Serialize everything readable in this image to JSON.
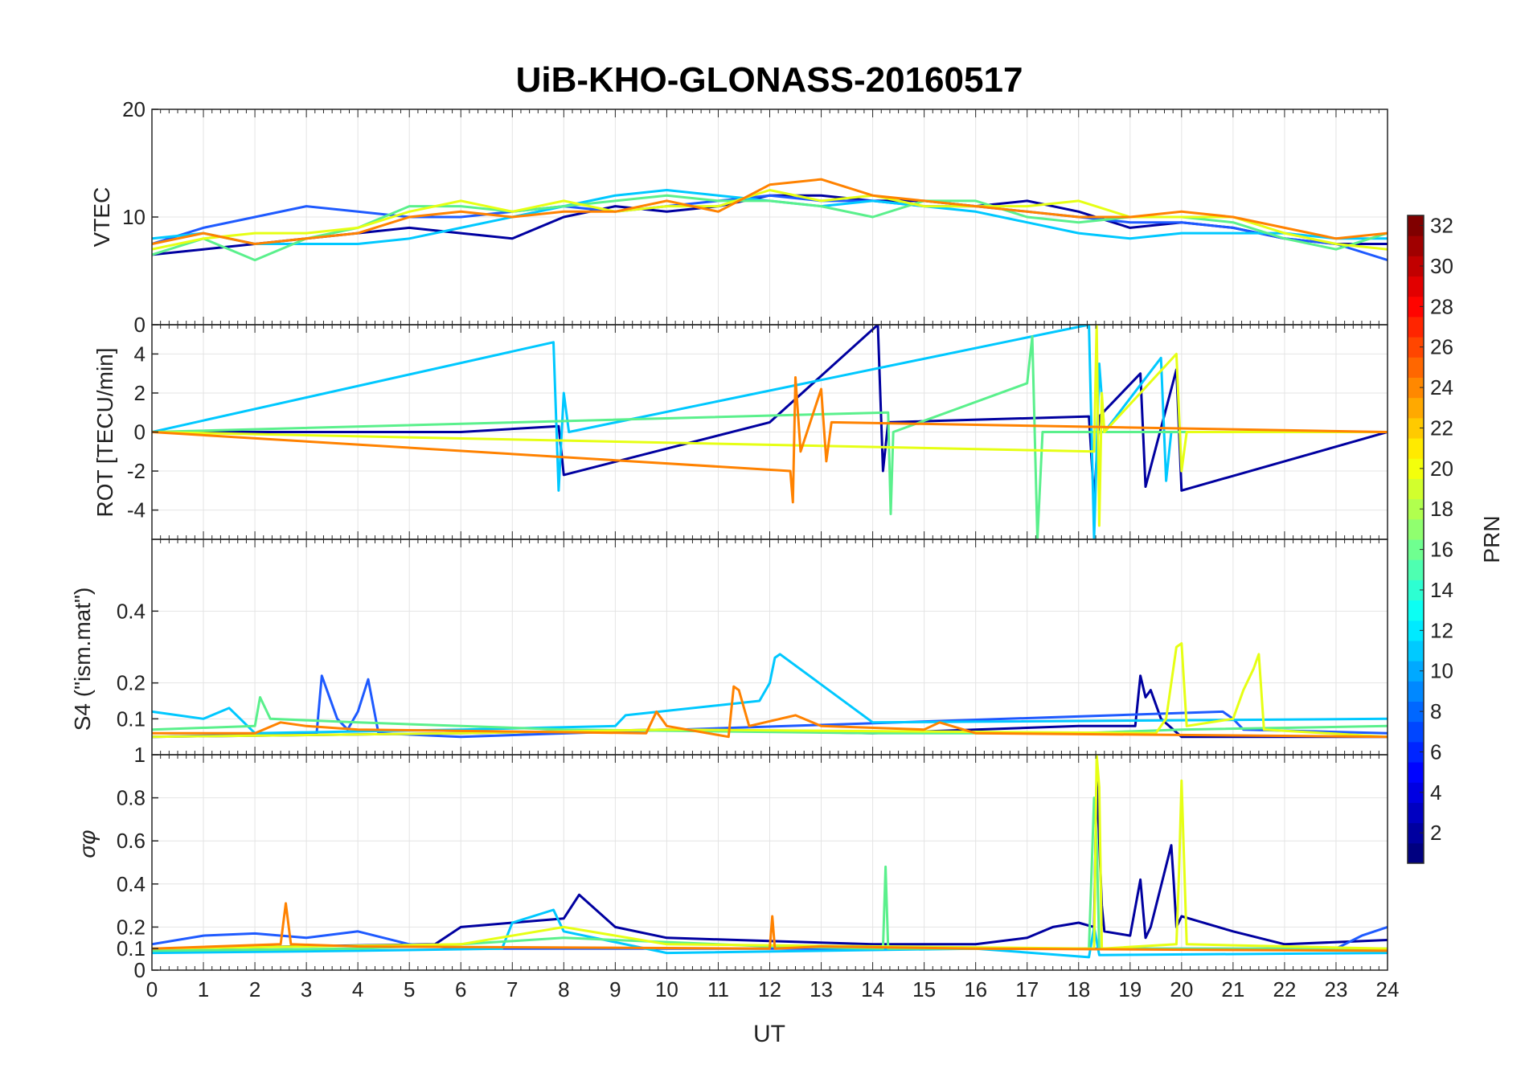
{
  "chart_data": {
    "type": "line",
    "title": "UiB-KHO-GLONASS-20160517",
    "xlabel": "UT",
    "xlim": [
      0,
      24
    ],
    "x_ticks": [
      "0",
      "1",
      "2",
      "3",
      "4",
      "5",
      "6",
      "7",
      "8",
      "9",
      "10",
      "11",
      "12",
      "13",
      "14",
      "15",
      "16",
      "17",
      "18",
      "19",
      "20",
      "21",
      "22",
      "23",
      "24"
    ],
    "grid": true,
    "colorbar": {
      "label": "PRN",
      "colormap": "jet",
      "range": [
        1,
        32
      ],
      "ticks": [
        "2",
        "4",
        "6",
        "8",
        "10",
        "12",
        "14",
        "16",
        "18",
        "20",
        "22",
        "24",
        "26",
        "28",
        "30",
        "32"
      ],
      "placement": "right"
    },
    "panels": [
      {
        "ylabel": "VTEC",
        "ylim": [
          0,
          20
        ],
        "y_ticks": [
          "0",
          "10",
          "20"
        ],
        "y_tick_values": [
          0,
          10,
          20
        ],
        "series": [
          {
            "color": "#0000a0",
            "x": [
              0,
              1,
              2,
              3,
              4,
              5,
              6,
              7,
              8,
              9,
              10,
              11,
              12,
              13,
              14,
              15,
              16,
              17,
              18,
              19,
              20,
              21,
              22,
              23,
              24
            ],
            "values": [
              6.5,
              7.0,
              7.5,
              8.0,
              8.5,
              9.0,
              8.5,
              8.0,
              10.0,
              11.0,
              10.5,
              11.0,
              12.0,
              12.0,
              11.5,
              11.5,
              11.0,
              11.5,
              10.5,
              9.0,
              9.5,
              9.0,
              8.0,
              7.5,
              7.5
            ]
          },
          {
            "color": "#1e5aff",
            "x": [
              0,
              1,
              2,
              3,
              4,
              5,
              6,
              7,
              8,
              9,
              10,
              11,
              12,
              13,
              14,
              15,
              16,
              17,
              18,
              19,
              20,
              21,
              22,
              23,
              24
            ],
            "values": [
              7.5,
              9.0,
              10.0,
              11.0,
              10.5,
              10.0,
              10.0,
              10.5,
              11.0,
              10.5,
              11.0,
              11.5,
              12.0,
              11.5,
              11.5,
              11.0,
              11.0,
              10.5,
              10.0,
              9.5,
              9.5,
              9.0,
              8.0,
              7.5,
              6.0
            ]
          },
          {
            "color": "#00c8ff",
            "x": [
              0,
              1,
              2,
              3,
              4,
              5,
              6,
              7,
              8,
              9,
              10,
              11,
              12,
              13,
              14,
              15,
              16,
              17,
              18,
              19,
              20,
              21,
              22,
              23,
              24
            ],
            "values": [
              8.0,
              8.5,
              7.5,
              7.5,
              7.5,
              8.0,
              9.0,
              10.0,
              11.0,
              12.0,
              12.5,
              12.0,
              11.5,
              11.0,
              11.5,
              11.0,
              10.5,
              9.5,
              8.5,
              8.0,
              8.5,
              8.5,
              8.5,
              8.0,
              8.0
            ]
          },
          {
            "color": "#5af08c",
            "x": [
              0,
              1,
              2,
              3,
              4,
              5,
              6,
              7,
              8,
              9,
              10,
              11,
              12,
              13,
              14,
              15,
              16,
              17,
              18,
              19,
              20,
              21,
              22,
              23,
              24
            ],
            "values": [
              6.5,
              8.0,
              6.0,
              8.0,
              9.0,
              11.0,
              11.0,
              10.5,
              11.0,
              11.5,
              12.0,
              11.5,
              11.5,
              11.0,
              10.0,
              11.5,
              11.5,
              10.0,
              9.5,
              10.0,
              10.0,
              9.5,
              8.0,
              7.0,
              8.5
            ]
          },
          {
            "color": "#e6ff14",
            "x": [
              0,
              1,
              2,
              3,
              4,
              5,
              6,
              7,
              8,
              9,
              10,
              11,
              12,
              13,
              14,
              15,
              16,
              17,
              18,
              19,
              20,
              21,
              22,
              23,
              24
            ],
            "values": [
              7.0,
              8.0,
              8.5,
              8.5,
              9.0,
              10.5,
              11.5,
              10.5,
              11.5,
              10.5,
              11.0,
              11.0,
              12.5,
              11.5,
              12.0,
              11.0,
              11.0,
              11.0,
              11.5,
              10.0,
              10.0,
              10.0,
              8.5,
              7.5,
              7.0
            ]
          },
          {
            "color": "#ff8200",
            "x": [
              0,
              1,
              2,
              3,
              4,
              5,
              6,
              7,
              8,
              9,
              10,
              11,
              12,
              13,
              14,
              15,
              16,
              17,
              18,
              19,
              20,
              21,
              22,
              23,
              24
            ],
            "values": [
              7.5,
              8.5,
              7.5,
              8.0,
              8.5,
              10.0,
              10.5,
              10.0,
              10.5,
              10.5,
              11.5,
              10.5,
              13.0,
              13.5,
              12.0,
              11.5,
              11.0,
              10.5,
              10.0,
              10.0,
              10.5,
              10.0,
              9.0,
              8.0,
              8.5
            ]
          }
        ]
      },
      {
        "ylabel": "ROT [TECU/min]",
        "ylim": [
          -5.5,
          5.5
        ],
        "y_ticks": [
          "-4",
          "-2",
          "0",
          "2",
          "4"
        ],
        "y_tick_values": [
          -4,
          -2,
          0,
          2,
          4
        ],
        "series": [
          {
            "color": "#0000a0",
            "x": [
              0,
              6,
              7.9,
              8.0,
              12.0,
              14.1,
              14.2,
              14.3,
              18.2,
              18.3,
              18.4,
              19.2,
              19.3,
              19.9,
              20.0,
              24
            ],
            "values": [
              0,
              0,
              0.3,
              -2.2,
              0.5,
              5.5,
              -2.0,
              0.5,
              0.8,
              -3.5,
              0.8,
              3.0,
              -2.8,
              3.2,
              -3.0,
              0
            ]
          },
          {
            "color": "#00c8ff",
            "x": [
              0,
              7.8,
              7.9,
              8.0,
              8.1,
              18.2,
              18.3,
              18.4,
              18.5,
              19.6,
              19.7,
              19.8,
              24
            ],
            "values": [
              0,
              4.6,
              -3.0,
              2.0,
              0,
              5.5,
              -5.5,
              3.5,
              0,
              3.8,
              -2.5,
              0,
              0
            ]
          },
          {
            "color": "#5af08c",
            "x": [
              0,
              14.3,
              14.35,
              14.4,
              17.0,
              17.1,
              17.2,
              17.3,
              24
            ],
            "values": [
              0,
              1.0,
              -4.2,
              0,
              2.5,
              4.9,
              -5.5,
              0,
              0
            ]
          },
          {
            "color": "#e6ff14",
            "x": [
              0,
              18.3,
              18.35,
              18.4,
              18.45,
              18.5,
              19.9,
              20.0,
              20.1,
              24
            ],
            "values": [
              0,
              -1.0,
              5.5,
              -4.8,
              2.0,
              0,
              4.0,
              -2.0,
              0,
              0
            ]
          },
          {
            "color": "#ff8200",
            "x": [
              0,
              12.4,
              12.45,
              12.5,
              12.6,
              13.0,
              13.1,
              13.2,
              24
            ],
            "values": [
              0,
              -2.0,
              -3.6,
              2.8,
              -1.0,
              2.2,
              -1.5,
              0.5,
              0
            ]
          }
        ]
      },
      {
        "ylabel": "S4 (\"ism.mat\")",
        "ylim": [
          0,
          0.6
        ],
        "y_ticks": [
          "0.1",
          "0.2",
          "0.4"
        ],
        "y_tick_values": [
          0.1,
          0.2,
          0.4
        ],
        "series": [
          {
            "color": "#0000a0",
            "x": [
              0,
              6,
              10,
              14,
              18,
              19.1,
              19.2,
              19.3,
              19.4,
              19.6,
              20,
              24
            ],
            "values": [
              0.05,
              0.06,
              0.07,
              0.06,
              0.08,
              0.08,
              0.22,
              0.16,
              0.18,
              0.1,
              0.05,
              0.05
            ]
          },
          {
            "color": "#1e5aff",
            "x": [
              0,
              3.2,
              3.3,
              3.4,
              3.6,
              3.8,
              4.0,
              4.2,
              4.4,
              6,
              20.8,
              21.0,
              21.2,
              24
            ],
            "values": [
              0.05,
              0.06,
              0.22,
              0.18,
              0.1,
              0.07,
              0.12,
              0.21,
              0.06,
              0.05,
              0.12,
              0.1,
              0.07,
              0.06
            ]
          },
          {
            "color": "#00c8ff",
            "x": [
              0,
              1.0,
              1.5,
              2,
              6,
              9.0,
              9.2,
              11.8,
              12.0,
              12.1,
              12.2,
              14,
              24
            ],
            "values": [
              0.12,
              0.1,
              0.13,
              0.06,
              0.07,
              0.08,
              0.11,
              0.15,
              0.2,
              0.27,
              0.28,
              0.09,
              0.1
            ]
          },
          {
            "color": "#5af08c",
            "x": [
              0,
              2.0,
              2.1,
              2.3,
              4,
              8,
              14,
              18,
              20,
              24
            ],
            "values": [
              0.07,
              0.08,
              0.16,
              0.1,
              0.09,
              0.07,
              0.06,
              0.06,
              0.07,
              0.08
            ]
          },
          {
            "color": "#e6ff14",
            "x": [
              0,
              6,
              10,
              19.5,
              19.7,
              19.8,
              19.9,
              20.0,
              20.1,
              21.0,
              21.2,
              21.4,
              21.5,
              21.6,
              24
            ],
            "values": [
              0.05,
              0.06,
              0.07,
              0.06,
              0.1,
              0.2,
              0.3,
              0.31,
              0.08,
              0.1,
              0.18,
              0.24,
              0.28,
              0.07,
              0.05
            ]
          },
          {
            "color": "#ff8200",
            "x": [
              0,
              2,
              2.5,
              3,
              4,
              9.6,
              9.8,
              10,
              11.2,
              11.3,
              11.4,
              11.6,
              12.5,
              13,
              15,
              15.3,
              16,
              24
            ],
            "values": [
              0.06,
              0.06,
              0.09,
              0.08,
              0.07,
              0.06,
              0.12,
              0.08,
              0.05,
              0.19,
              0.18,
              0.08,
              0.11,
              0.08,
              0.07,
              0.09,
              0.06,
              0.05
            ]
          }
        ]
      },
      {
        "ylabel": "σφ",
        "ylim": [
          0,
          1
        ],
        "y_ticks": [
          "0",
          "0.1",
          "0.2",
          "0.4",
          "0.6",
          "0.8",
          "1"
        ],
        "y_tick_values": [
          0,
          0.1,
          0.2,
          0.4,
          0.6,
          0.8,
          1
        ],
        "series": [
          {
            "color": "#0000a0",
            "x": [
              0,
              5.5,
              6,
              7,
              8,
              8.3,
              9,
              10,
              14,
              16,
              17,
              17.5,
              18,
              18.3,
              18.35,
              18.45,
              18.5,
              19,
              19.2,
              19.3,
              19.4,
              19.8,
              19.85,
              19.9,
              20,
              21,
              22,
              24
            ],
            "values": [
              0.1,
              0.12,
              0.2,
              0.22,
              0.24,
              0.35,
              0.2,
              0.15,
              0.12,
              0.12,
              0.15,
              0.2,
              0.22,
              0.2,
              0.9,
              0.3,
              0.18,
              0.16,
              0.42,
              0.15,
              0.2,
              0.58,
              0.4,
              0.2,
              0.25,
              0.18,
              0.12,
              0.14
            ]
          },
          {
            "color": "#1e5aff",
            "x": [
              0,
              1,
              2,
              3,
              4,
              5,
              6,
              12,
              23,
              23.5,
              24
            ],
            "values": [
              0.12,
              0.16,
              0.17,
              0.15,
              0.18,
              0.12,
              0.1,
              0.1,
              0.1,
              0.16,
              0.2
            ]
          },
          {
            "color": "#00c8ff",
            "x": [
              0,
              4,
              6.8,
              7,
              7.8,
              8,
              10,
              16,
              18.2,
              18.3,
              18.4,
              24
            ],
            "values": [
              0.08,
              0.09,
              0.1,
              0.22,
              0.28,
              0.18,
              0.08,
              0.1,
              0.06,
              0.2,
              0.07,
              0.08
            ]
          },
          {
            "color": "#5af08c",
            "x": [
              0,
              4,
              6,
              8,
              12,
              14.2,
              14.25,
              14.3,
              18.2,
              18.3,
              18.35,
              18.4,
              24
            ],
            "values": [
              0.09,
              0.1,
              0.12,
              0.15,
              0.11,
              0.1,
              0.48,
              0.1,
              0.1,
              0.8,
              0.6,
              0.1,
              0.1
            ]
          },
          {
            "color": "#e6ff14",
            "x": [
              0,
              6,
              8,
              10,
              18.3,
              18.35,
              18.4,
              18.45,
              19.9,
              19.95,
              20.0,
              20.05,
              20.1,
              24
            ],
            "values": [
              0.1,
              0.12,
              0.2,
              0.12,
              0.1,
              1.0,
              0.85,
              0.1,
              0.12,
              0.45,
              0.88,
              0.5,
              0.12,
              0.1
            ]
          },
          {
            "color": "#ff8200",
            "x": [
              0,
              2.5,
              2.6,
              2.7,
              4,
              12,
              12.05,
              12.1,
              13,
              16,
              24
            ],
            "values": [
              0.1,
              0.12,
              0.31,
              0.12,
              0.11,
              0.1,
              0.25,
              0.1,
              0.11,
              0.1,
              0.09
            ]
          }
        ]
      }
    ]
  }
}
